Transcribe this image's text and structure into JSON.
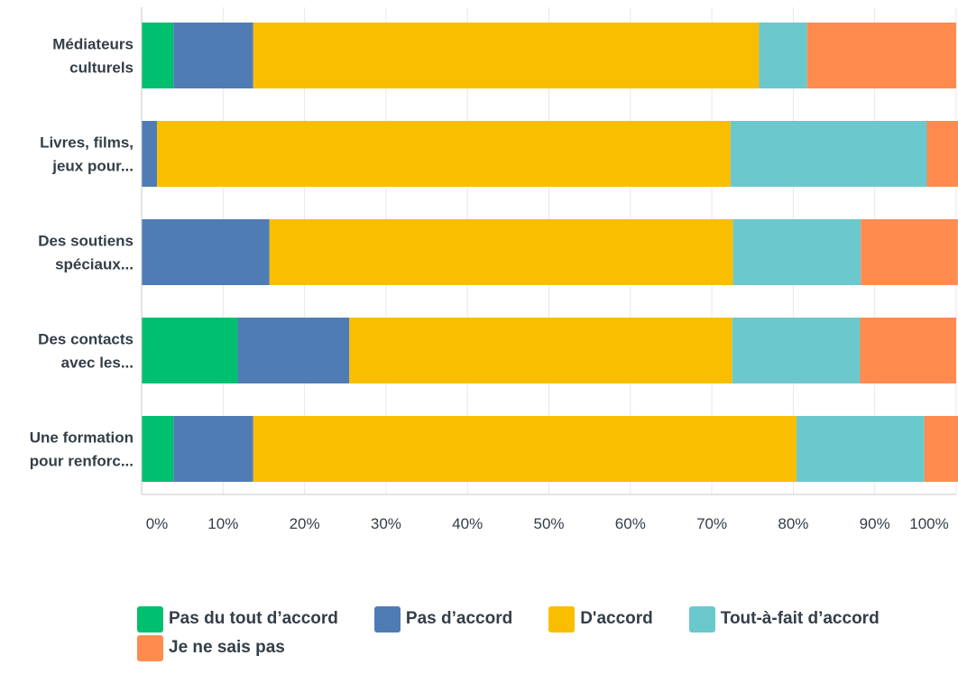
{
  "chart_data": {
    "type": "bar",
    "orientation": "horizontal",
    "stacked": true,
    "categories": [
      [
        "Médiateurs",
        "culturels"
      ],
      [
        "Livres, films,",
        "jeux pour..."
      ],
      [
        "Des soutiens",
        "spéciaux..."
      ],
      [
        "Des contacts",
        "avec les..."
      ],
      [
        "Une formation",
        "pour renforc..."
      ]
    ],
    "series": [
      {
        "name": "Pas du tout d’accord",
        "color": "#00bf6f",
        "values": [
          3.9,
          0,
          0,
          11.8,
          3.9
        ]
      },
      {
        "name": "Pas d’accord",
        "color": "#507cb6",
        "values": [
          9.8,
          1.9,
          15.7,
          13.7,
          9.8
        ]
      },
      {
        "name": "D'accord",
        "color": "#f9be00",
        "values": [
          62.1,
          70.4,
          56.9,
          47.0,
          66.7
        ]
      },
      {
        "name": "Tout-à-fait d’accord",
        "color": "#6bc8cd",
        "values": [
          5.9,
          24.1,
          15.7,
          15.7,
          15.7
        ]
      },
      {
        "name": "Je ne sais pas",
        "color": "#ff8b4f",
        "values": [
          18.3,
          4.1,
          11.9,
          11.8,
          4.3
        ]
      }
    ],
    "x_ticks": [
      "0%",
      "10%",
      "20%",
      "30%",
      "40%",
      "50%",
      "60%",
      "70%",
      "80%",
      "90%",
      "100%"
    ],
    "xlim": [
      0,
      100
    ],
    "grid": true,
    "legend_position": "bottom"
  }
}
